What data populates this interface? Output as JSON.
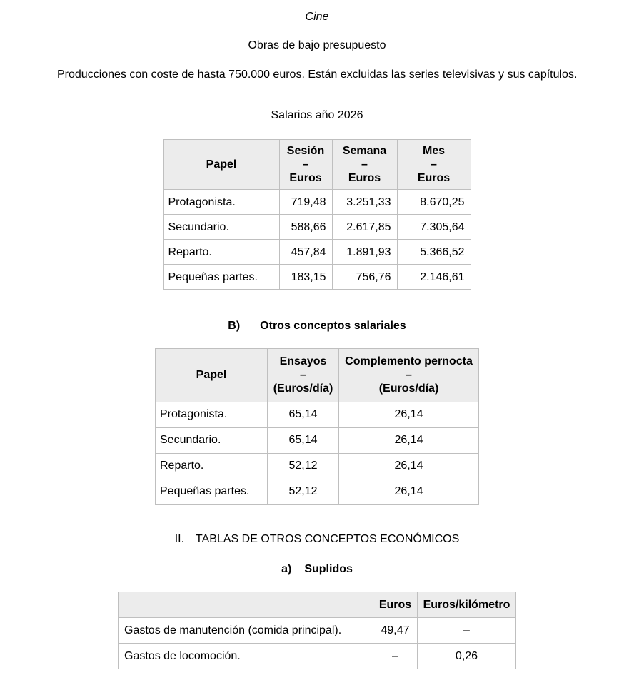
{
  "document": {
    "title": "Cine",
    "subtitle": "Obras de bajo presupuesto",
    "intro_paragraph": "Producciones con coste de hasta 750.000 euros. Están excluidas las series televisivas y sus capítulos.",
    "salaries_title": "Salarios año 2026",
    "section_b": {
      "label": "B)",
      "text": "Otros conceptos salariales"
    },
    "section_ii": {
      "label": "II.",
      "text": "TABLAS DE OTROS CONCEPTOS ECONÓMICOS"
    },
    "section_a": {
      "label": "a)",
      "text": "Suplidos"
    }
  },
  "tables": {
    "salarios": {
      "headers": [
        "Papel",
        "Sesión\n–\nEuros",
        "Semana\n–\nEuros",
        "Mes\n–\nEuros"
      ],
      "rows": [
        {
          "papel": "Protagonista.",
          "sesion": "719,48",
          "semana": "3.251,33",
          "mes": "8.670,25"
        },
        {
          "papel": "Secundario.",
          "sesion": "588,66",
          "semana": "2.617,85",
          "mes": "7.305,64"
        },
        {
          "papel": "Reparto.",
          "sesion": "457,84",
          "semana": "1.891,93",
          "mes": "5.366,52"
        },
        {
          "papel": "Pequeñas partes.",
          "sesion": "183,15",
          "semana": "756,76",
          "mes": "2.146,61"
        }
      ]
    },
    "otros_conceptos": {
      "headers": [
        "Papel",
        "Ensayos\n–\n(Euros/día)",
        "Complemento pernocta\n–\n(Euros/día)"
      ],
      "rows": [
        {
          "papel": "Protagonista.",
          "ensayos": "65,14",
          "pernocta": "26,14"
        },
        {
          "papel": "Secundario.",
          "ensayos": "65,14",
          "pernocta": "26,14"
        },
        {
          "papel": "Reparto.",
          "ensayos": "52,12",
          "pernocta": "26,14"
        },
        {
          "papel": "Pequeñas partes.",
          "ensayos": "52,12",
          "pernocta": "26,14"
        }
      ]
    },
    "suplidos": {
      "headers": [
        "",
        "Euros",
        "Euros/kilómetro"
      ],
      "rows": [
        {
          "concepto": "Gastos de manutención (comida principal).",
          "euros": "49,47",
          "euros_km": "–"
        },
        {
          "concepto": "Gastos de locomoción.",
          "euros": "–",
          "euros_km": "0,26"
        }
      ]
    }
  },
  "colors": {
    "page_background": "#ffffff",
    "table_header_background": "#ececec",
    "table_border": "#bfbfbf",
    "text": "#000000"
  }
}
